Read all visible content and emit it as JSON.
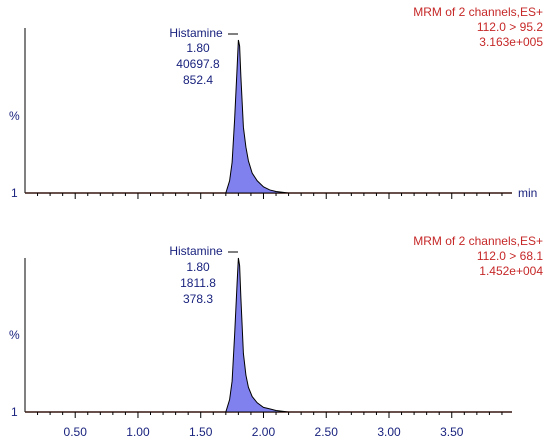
{
  "colors": {
    "label_text": "#1a237e",
    "channel_text": "#c62828",
    "peak_fill": "#8080ee",
    "baseline": "#a04030"
  },
  "chart_data": [
    {
      "type": "area",
      "header": [
        "MRM of 2 channels,ES+",
        "112.0 > 95.2",
        "3.163e+005"
      ],
      "ylabel": "%",
      "y_base_label": "1",
      "xlabel": "min",
      "xlim": [
        0.1,
        3.98
      ],
      "ylim": [
        0,
        100
      ],
      "peak_label": {
        "name": "Histamine",
        "values": [
          "1.80",
          "40697.8",
          "852.4"
        ]
      },
      "series": [
        {
          "x": [
            0.1,
            1.6,
            1.7,
            1.73,
            1.75,
            1.77,
            1.79,
            1.8,
            1.81,
            1.82,
            1.84,
            1.86,
            1.88,
            1.91,
            1.95,
            2.0,
            2.05,
            2.1,
            2.2,
            2.3,
            3.98
          ],
          "values": [
            0,
            0,
            0,
            8,
            20,
            48,
            82,
            100,
            96,
            76,
            43,
            30,
            21,
            13,
            8,
            4,
            2,
            1,
            0,
            0,
            0
          ]
        }
      ]
    },
    {
      "type": "area",
      "header": [
        "MRM of 2 channels,ES+",
        "112.0 > 68.1",
        "1.452e+004"
      ],
      "ylabel": "%",
      "y_base_label": "1",
      "xlabel": "",
      "xlim": [
        0.1,
        3.98
      ],
      "ylim": [
        0,
        100
      ],
      "peak_label": {
        "name": "Histamine",
        "values": [
          "1.80",
          "1811.8",
          "378.3"
        ]
      },
      "series": [
        {
          "x": [
            0.1,
            1.6,
            1.7,
            1.73,
            1.75,
            1.77,
            1.79,
            1.8,
            1.81,
            1.82,
            1.84,
            1.86,
            1.88,
            1.91,
            1.95,
            2.0,
            2.05,
            2.1,
            2.2,
            2.3,
            3.98
          ],
          "values": [
            0,
            0,
            0,
            8,
            20,
            50,
            84,
            100,
            95,
            74,
            38,
            24,
            16,
            10,
            6,
            3,
            2,
            1,
            0,
            0,
            0
          ]
        }
      ]
    }
  ],
  "x_axis": {
    "tick_labels": [
      "0.50",
      "1.00",
      "1.50",
      "2.00",
      "2.50",
      "3.00",
      "3.50"
    ],
    "tick_values": [
      0.5,
      1.0,
      1.5,
      2.0,
      2.5,
      3.0,
      3.5
    ]
  }
}
